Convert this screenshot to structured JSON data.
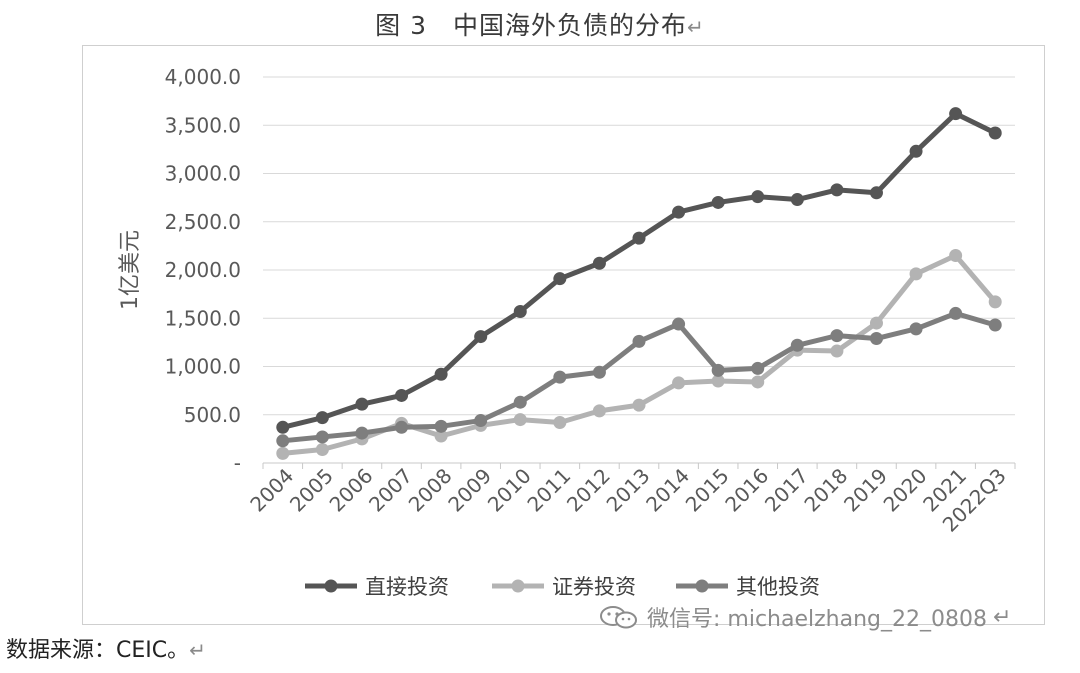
{
  "title": {
    "label": "图 3",
    "text": "中国海外负债的分布",
    "mark": "↵"
  },
  "source": {
    "text": "数据来源：CEIC。",
    "mark": "↵"
  },
  "watermark": {
    "text": "微信号: michaelzhang_22_0808",
    "mark": "↵"
  },
  "colors": {
    "direct": "#555555",
    "securities": "#b3b3b3",
    "other": "#7e7e7e",
    "grid": "#d9d9d9",
    "axis_text": "#595959"
  },
  "chart_data": {
    "type": "line",
    "ylabel": "1亿美元",
    "ylim": [
      0,
      4000
    ],
    "yticks": [
      0,
      500,
      1000,
      1500,
      2000,
      2500,
      3000,
      3500,
      4000
    ],
    "ytick_labels": [
      "-",
      "500.0",
      "1,000.0",
      "1,500.0",
      "2,000.0",
      "2,500.0",
      "3,000.0",
      "3,500.0",
      "4,000.0"
    ],
    "grid": true,
    "legend_position": "bottom",
    "categories": [
      "2004",
      "2005",
      "2006",
      "2007",
      "2008",
      "2009",
      "2010",
      "2011",
      "2012",
      "2013",
      "2014",
      "2015",
      "2016",
      "2017",
      "2018",
      "2019",
      "2020",
      "2021",
      "2022Q3"
    ],
    "series": [
      {
        "name": "直接投资",
        "color": "#555555",
        "values": [
          370,
          470,
          610,
          700,
          920,
          1310,
          1570,
          1910,
          2070,
          2330,
          2600,
          2700,
          2760,
          2730,
          2830,
          2800,
          3230,
          3620,
          3420
        ]
      },
      {
        "name": "证券投资",
        "color": "#b3b3b3",
        "values": [
          100,
          140,
          250,
          410,
          280,
          390,
          450,
          420,
          540,
          600,
          830,
          850,
          840,
          1170,
          1160,
          1450,
          1960,
          2150,
          1670
        ]
      },
      {
        "name": "其他投资",
        "color": "#7e7e7e",
        "values": [
          230,
          270,
          310,
          370,
          380,
          440,
          630,
          890,
          940,
          1260,
          1440,
          960,
          980,
          1220,
          1320,
          1290,
          1390,
          1550,
          1430
        ]
      }
    ]
  }
}
